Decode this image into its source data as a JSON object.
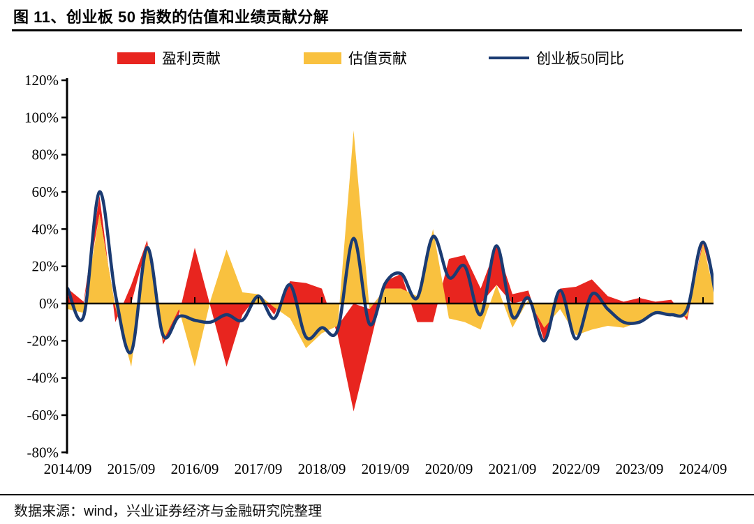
{
  "page": {
    "title": "图 11、创业板 50 指数的估值和业绩贡献分解",
    "source": "数据来源：wind，兴业证券经济与金融研究院整理"
  },
  "legend": {
    "items": [
      {
        "label": "盈利贡献",
        "swatch": "rect",
        "color": "#E8251F"
      },
      {
        "label": "估值贡献",
        "swatch": "rect",
        "color": "#F9C13F"
      },
      {
        "label": "创业板50同比",
        "swatch": "line",
        "color": "#1B3B72"
      }
    ]
  },
  "chart_data": {
    "type": "area",
    "title": "创业板 50 指数的估值和业绩贡献分解",
    "unit": "percent",
    "grid": false,
    "legend_position": "top",
    "stacking": "diverging; 估值贡献 stacked first from zero, 盈利贡献 stacked on it; line independent",
    "ylim": [
      -80,
      120
    ],
    "ytick_step": 20,
    "ytick_labels": [
      "120%",
      "100%",
      "80%",
      "60%",
      "40%",
      "20%",
      "0%",
      "-20%",
      "-40%",
      "-60%",
      "-80%"
    ],
    "xtick_labels": [
      "2014/09",
      "2015/09",
      "2016/09",
      "2017/09",
      "2018/09",
      "2019/09",
      "2020/09",
      "2021/09",
      "2022/09",
      "2023/09",
      "2024/09"
    ],
    "xtick_every": 4,
    "categories": [
      "2014/09",
      "2014/12",
      "2015/03",
      "2015/06",
      "2015/09",
      "2015/12",
      "2016/03",
      "2016/06",
      "2016/09",
      "2016/12",
      "2017/03",
      "2017/06",
      "2017/09",
      "2017/12",
      "2018/03",
      "2018/06",
      "2018/09",
      "2018/12",
      "2019/03",
      "2019/06",
      "2019/09",
      "2019/12",
      "2020/03",
      "2020/06",
      "2020/09",
      "2020/12",
      "2021/03",
      "2021/06",
      "2021/09",
      "2021/12",
      "2022/03",
      "2022/06",
      "2022/09",
      "2022/12",
      "2023/03",
      "2023/06",
      "2023/09",
      "2023/12",
      "2024/03",
      "2024/06",
      "2024/09",
      "2024/12"
    ],
    "series": [
      {
        "name": "盈利贡献",
        "type": "area",
        "color": "#E8251F",
        "stack_order": 2,
        "values": [
          8,
          1,
          10,
          -8,
          10,
          2,
          -2,
          -3,
          30,
          -2,
          -34,
          -6,
          0,
          -4,
          12,
          11,
          8,
          -5,
          -58,
          -20,
          4,
          8,
          -10,
          -10,
          24,
          26,
          8,
          21,
          5,
          5,
          -7,
          8,
          9,
          13,
          4,
          1,
          3,
          1,
          2,
          -2,
          2,
          0
        ]
      },
      {
        "name": "估值贡献",
        "type": "area",
        "color": "#F9C13F",
        "stack_order": 1,
        "values": [
          -3,
          -5,
          48,
          -2,
          -34,
          32,
          -20,
          -3,
          -34,
          2,
          29,
          6,
          5,
          -2,
          -8,
          -24,
          -16,
          -12,
          93,
          -3,
          8,
          8,
          4,
          40,
          -8,
          -10,
          -14,
          10,
          -13,
          2,
          -13,
          -3,
          -17,
          -14,
          -12,
          -13,
          -10,
          -5,
          -6,
          -7,
          32,
          -5
        ]
      },
      {
        "name": "创业板50同比",
        "type": "line",
        "color": "#1B3B72",
        "values": [
          8,
          -7,
          60,
          5,
          -26,
          30,
          -17,
          -7,
          -9,
          -10,
          -6,
          -9,
          4,
          -8,
          10,
          -18,
          -13,
          -14,
          35,
          -11,
          11,
          16,
          3,
          36,
          14,
          20,
          -6,
          31,
          -7,
          3,
          -20,
          7,
          -19,
          5,
          -3,
          -10,
          -10,
          -5,
          -6,
          -3,
          33,
          -6
        ]
      }
    ]
  }
}
